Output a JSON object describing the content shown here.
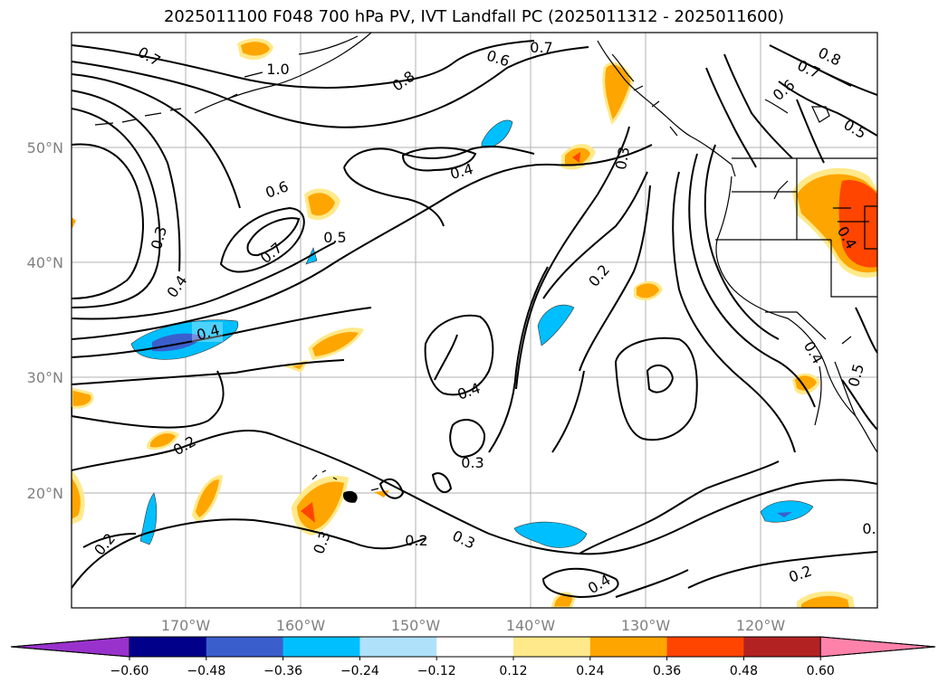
{
  "title": "2025011100 F048 700 hPa PV, IVT Landfall PC (2025011312 - 2025011600)",
  "axes": {
    "lat_ticks": [
      "50°N",
      "40°N",
      "30°N",
      "20°N"
    ],
    "lon_ticks": [
      "170°W",
      "160°W",
      "150°W",
      "140°W",
      "130°W",
      "120°W"
    ]
  },
  "contour_labels": [
    "1.0",
    "0.7",
    "0.8",
    "0.6",
    "0.7",
    "0.7",
    "0.8",
    "0.6",
    "0.5",
    "0.4",
    "0.3",
    "0.6",
    "0.7",
    "0.5",
    "0.3",
    "0.4",
    "0.4",
    "0.2",
    "0.4",
    "0.2",
    "0.3",
    "0.2",
    "0.3",
    "0.2",
    "0.3",
    "0.4",
    "0.2",
    "0.4",
    "0.5",
    "0.4",
    "0."
  ],
  "colorbar": {
    "ticks": [
      "−0.60",
      "−0.48",
      "−0.36",
      "−0.24",
      "−0.12",
      "0.12",
      "0.24",
      "0.36",
      "0.48",
      "0.60"
    ],
    "colors": [
      "#9932cc",
      "#00008b",
      "#3a5fcd",
      "#00bfff",
      "#afe1fa",
      "#ffffff",
      "#ffe98a",
      "#ffa500",
      "#ff4500",
      "#b22222",
      "#ff82ab"
    ]
  }
}
